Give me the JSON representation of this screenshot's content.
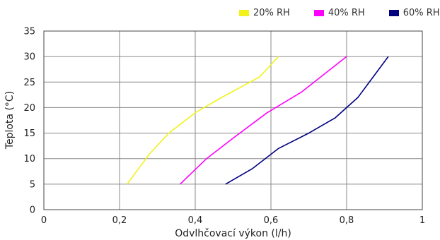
{
  "chart_data": {
    "type": "line",
    "title": "",
    "xlabel": "Odvlhčovací výkon (l/h)",
    "ylabel": "Teplota (°C)",
    "xlim": [
      0,
      1
    ],
    "ylim": [
      0,
      35
    ],
    "xticks": [
      0,
      0.2,
      0.4,
      0.6,
      0.8,
      1
    ],
    "xtick_labels": [
      "0",
      "0,2",
      "0,4",
      "0,6",
      "0,8",
      "1"
    ],
    "yticks": [
      0,
      5,
      10,
      15,
      20,
      25,
      30,
      35
    ],
    "ytick_labels": [
      "0",
      "5",
      "10",
      "15",
      "20",
      "25",
      "30",
      "35"
    ],
    "grid": true,
    "legend_position": "top-right",
    "series": [
      {
        "name": "20% RH",
        "color": "#f2f21a",
        "x": [
          0.22,
          0.25,
          0.28,
          0.33,
          0.4,
          0.47,
          0.57,
          0.62
        ],
        "y": [
          5,
          8,
          11,
          15,
          19,
          22,
          26,
          30
        ]
      },
      {
        "name": "40% RH",
        "color": "#ff00ff",
        "x": [
          0.36,
          0.43,
          0.5,
          0.59,
          0.68,
          0.8
        ],
        "y": [
          5,
          10,
          14,
          19,
          23,
          30
        ]
      },
      {
        "name": "60% RH",
        "color": "#000080",
        "x": [
          0.48,
          0.55,
          0.62,
          0.7,
          0.77,
          0.83,
          0.91
        ],
        "y": [
          5,
          8,
          12,
          15,
          18,
          22,
          30
        ]
      }
    ]
  }
}
